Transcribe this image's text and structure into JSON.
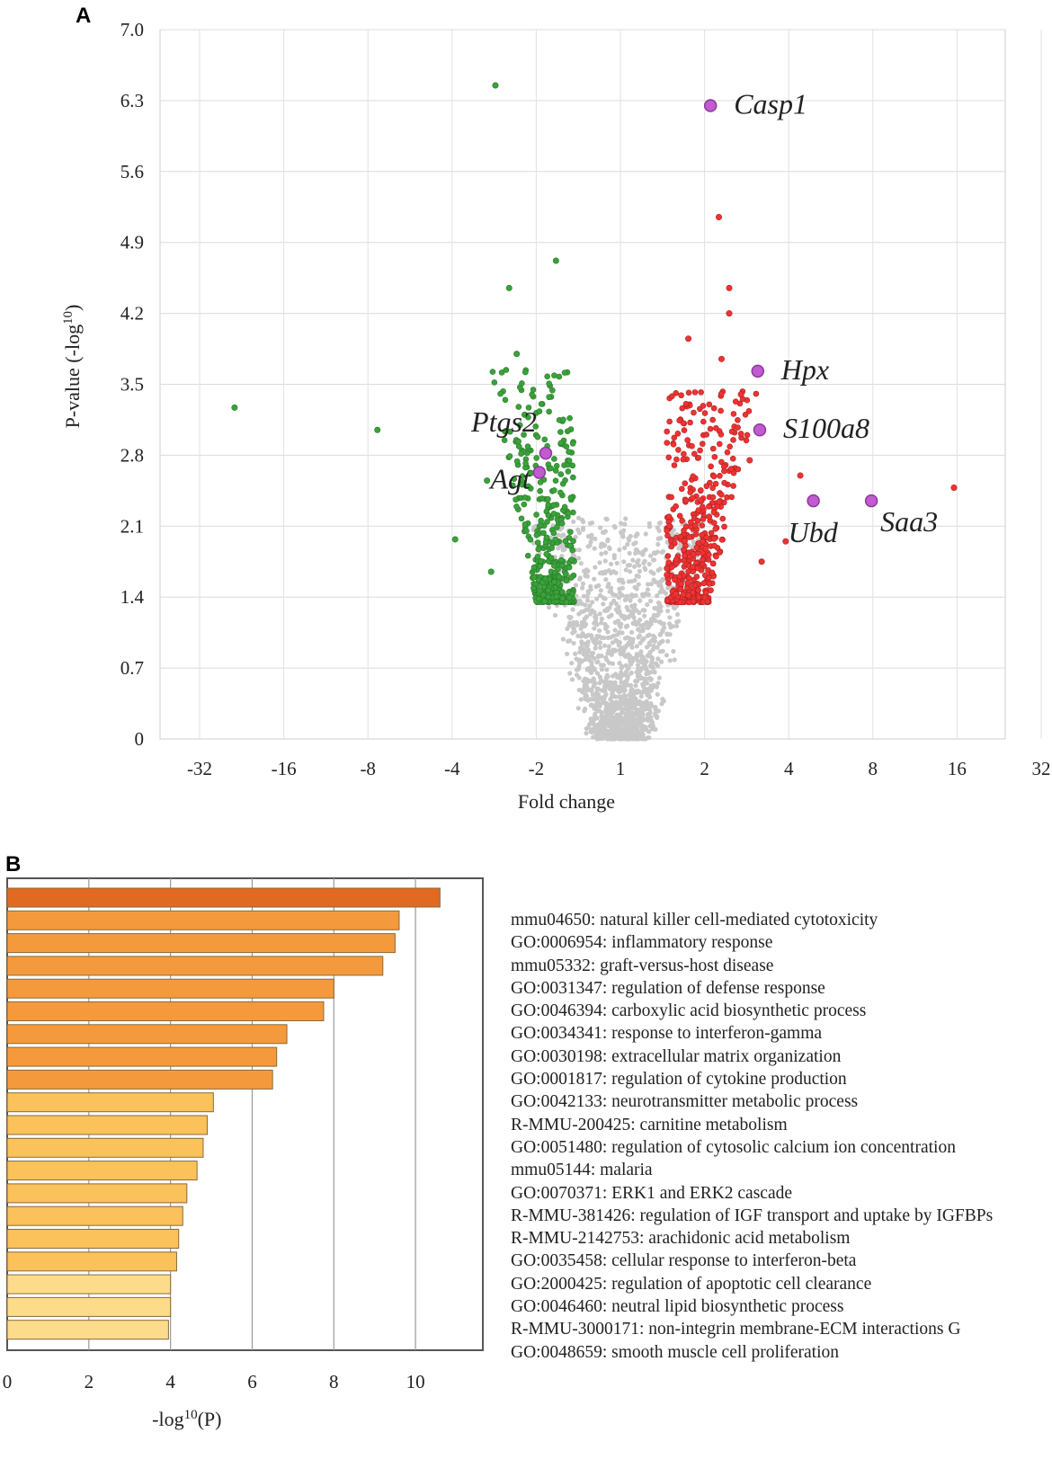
{
  "panels": {
    "a": "A",
    "b": "B"
  },
  "colors": {
    "down": "#3aa23a",
    "up": "#ee3333",
    "ns": "#c8c8c8",
    "highlight_fill": "#c05bd0",
    "highlight_stroke": "#8a3a9a",
    "bar_dark": "#e06a22",
    "bar_mid": "#f59a3c",
    "bar_light": "#fbc15a",
    "bar_pale": "#fcdc8a"
  },
  "chart_data": [
    {
      "type": "scatter",
      "title": "",
      "xlabel": "Fold change",
      "ylabel": "P-value (-log",
      "ylabel_sup": "10",
      "ylabel_close": ")",
      "x_scale": "log2 signed fold change",
      "x_ticks": [
        -32,
        -16,
        -8,
        -4,
        -2,
        1,
        2,
        4,
        8,
        16,
        32
      ],
      "x_tick_labels": [
        "-32",
        "-16",
        "-8",
        "-4",
        "-2",
        "1",
        "2",
        "4",
        "8",
        "16",
        "32"
      ],
      "y_ticks": [
        0,
        0.7,
        1.4,
        2.1,
        2.8,
        3.5,
        4.2,
        4.9,
        5.6,
        6.3,
        7.0
      ],
      "y_tick_labels": [
        "0",
        "0.7",
        "1.4",
        "2.1",
        "2.8",
        "3.5",
        "4.2",
        "4.9",
        "5.6",
        "6.3",
        "7.0"
      ],
      "ylim": [
        0,
        7.0
      ],
      "grid": true,
      "labeled_genes": [
        {
          "name": "Casp1",
          "fc": 2.1,
          "p": 6.25,
          "label_side": "right"
        },
        {
          "name": "Hpx",
          "fc": 3.1,
          "p": 3.63,
          "label_side": "right"
        },
        {
          "name": "S100a8",
          "fc": 3.15,
          "p": 3.05,
          "label_side": "right"
        },
        {
          "name": "Ptgs2",
          "fc": -1.85,
          "p": 2.82,
          "label_side": "left-up"
        },
        {
          "name": "Agt",
          "fc": -1.95,
          "p": 2.63,
          "label_side": "left-down"
        },
        {
          "name": "Ubd",
          "fc": 4.9,
          "p": 2.35,
          "label_side": "below"
        },
        {
          "name": "Saa3",
          "fc": 7.9,
          "p": 2.35,
          "label_side": "below-right"
        }
      ],
      "down_outliers": [
        {
          "fc": -24.0,
          "p": 3.27
        },
        {
          "fc": -7.4,
          "p": 3.05
        },
        {
          "fc": -3.9,
          "p": 1.97
        },
        {
          "fc": -2.8,
          "p": 6.45
        },
        {
          "fc": -2.5,
          "p": 4.45
        },
        {
          "fc": -1.7,
          "p": 4.72
        },
        {
          "fc": -2.35,
          "p": 3.8
        },
        {
          "fc": -2.2,
          "p": 3.2
        },
        {
          "fc": -2.9,
          "p": 1.65
        },
        {
          "fc": -3.0,
          "p": 2.55
        }
      ],
      "up_outliers": [
        {
          "fc": 2.25,
          "p": 5.15
        },
        {
          "fc": 2.45,
          "p": 4.45
        },
        {
          "fc": 2.45,
          "p": 4.2
        },
        {
          "fc": 2.3,
          "p": 3.75
        },
        {
          "fc": 1.75,
          "p": 3.95
        },
        {
          "fc": 15.6,
          "p": 2.48
        },
        {
          "fc": 4.4,
          "p": 2.6
        },
        {
          "fc": 3.2,
          "p": 1.75
        },
        {
          "fc": 3.9,
          "p": 1.95
        },
        {
          "fc": 2.9,
          "p": 2.75
        },
        {
          "fc": 2.7,
          "p": 3.4
        }
      ]
    },
    {
      "type": "bar",
      "orientation": "horizontal",
      "xlabel": "-log",
      "xlabel_sup": "10",
      "xlabel_close": "(P)",
      "x_ticks": [
        0,
        2,
        4,
        6,
        8,
        10
      ],
      "x_tick_labels": [
        "0",
        "2",
        "4",
        "6",
        "8",
        "10"
      ],
      "xlim": [
        0,
        11.3
      ],
      "grid": true,
      "categories": [
        "mmu04650: natural killer  cell-mediated  cytotoxicity",
        "GO:0006954:  inflammatory response",
        "mmu05332:  graft-versus-host disease",
        "GO:0031347:  regulation  of defense response",
        "GO:0046394:  carboxylic  acid  biosynthetic process",
        "GO:0034341:  response to interferon-gamma",
        "GO:0030198:  extracellular  matrix organization",
        "GO:0001817:  regulation  of cytokine production",
        "GO:0042133:  neurotransmitter metabolic  process",
        "R-MMU-200425:  carnitine metabolism",
        "GO:0051480:  regulation  of cytosolic calcium  ion concentration",
        "mmu05144:  malaria",
        "GO:0070371:  ERK1 and ERK2 cascade",
        "R-MMU-381426: regulation of IGF transport and uptake by IGFBPs",
        "R-MMU-2142753:  arachidonic acid metabolism",
        "GO:0035458:  cellular  response to interferon-beta",
        "GO:2000425:  regulation  of apoptotic cell clearance",
        "GO:0046460:  neutral lipid biosynthetic process",
        "R-MMU-3000171: non-integrin membrane-ECM interactions G",
        "GO:0048659:  smooth muscle cell  proliferation"
      ],
      "values": [
        10.6,
        9.6,
        9.5,
        9.2,
        8.0,
        7.75,
        6.85,
        6.6,
        6.5,
        5.05,
        4.9,
        4.8,
        4.65,
        4.4,
        4.3,
        4.2,
        4.15,
        4.0,
        4.0,
        3.95
      ],
      "color_tier": [
        "dark",
        "mid",
        "mid",
        "mid",
        "mid",
        "mid",
        "mid",
        "mid",
        "mid",
        "light",
        "light",
        "light",
        "light",
        "light",
        "light",
        "light",
        "light",
        "pale",
        "pale",
        "pale"
      ]
    }
  ]
}
